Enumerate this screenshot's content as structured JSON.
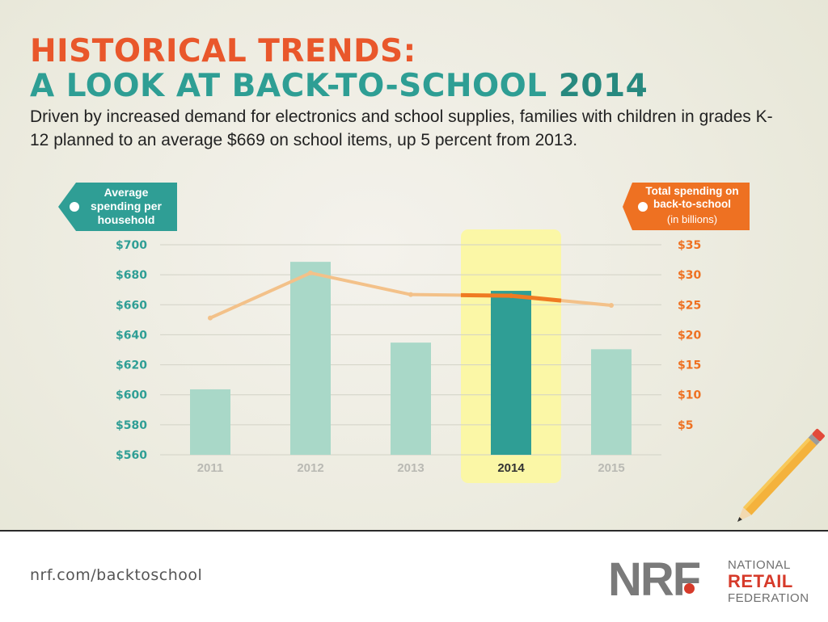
{
  "header": {
    "title_line1": "HISTORICAL TRENDS:",
    "title_line2": "A LOOK AT BACK-TO-SCHOOL",
    "title_year": "2014",
    "subtitle": "Driven by increased demand for electronics and school supplies, families with children in grades K-12 planned to an average $669 on school items, up 5 percent from 2013."
  },
  "chart_data": {
    "type": "bar",
    "categories": [
      "2011",
      "2012",
      "2013",
      "2014",
      "2015"
    ],
    "highlight_category": "2014",
    "series": [
      {
        "name": "Average spending per household",
        "type": "bar",
        "axis": "left",
        "values": [
          603.63,
          688.62,
          634.78,
          669.28,
          630.36
        ]
      },
      {
        "name": "Total spending on back-to-school",
        "type": "line",
        "axis": "right",
        "values": [
          22.8,
          30.3,
          26.7,
          26.5,
          24.9
        ]
      }
    ],
    "left_axis": {
      "label": [
        "Average",
        "spending per",
        "household"
      ],
      "ylim": [
        560,
        700
      ],
      "ticks": [
        "$700",
        "$680",
        "$660",
        "$640",
        "$620",
        "$600",
        "$580",
        "$560"
      ]
    },
    "right_axis": {
      "label": [
        "Total spending on",
        "back-to-school"
      ],
      "label_sub": "(in billions)",
      "ylim": [
        0,
        35
      ],
      "ticks": [
        "$35",
        "$30",
        "$25",
        "$20",
        "$15",
        "$10",
        "$5"
      ]
    },
    "grid": true,
    "colors": {
      "bar": "#a9d8c8",
      "bar_highlight": "#2f9e95",
      "line": "#f3c189",
      "line_highlight": "#ef7b22",
      "highlight_band": "#fbf7a6",
      "left_axis": "#2f9e95",
      "right_axis": "#ee7122"
    }
  },
  "footer": {
    "url": "nrf.com/backtoschool",
    "logo_mark": "NRF",
    "logo_national": "NATIONAL",
    "logo_retail": "RETAIL",
    "logo_federation": "FEDERATION"
  }
}
